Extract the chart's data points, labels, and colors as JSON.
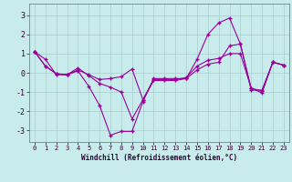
{
  "xlabel": "Windchill (Refroidissement éolien,°C)",
  "bg_color": "#c8ecec",
  "line_color": "#990099",
  "grid_color": "#aacccc",
  "xlim": [
    -0.5,
    23.5
  ],
  "ylim": [
    -3.6,
    3.6
  ],
  "yticks": [
    -3,
    -2,
    -1,
    0,
    1,
    2,
    3
  ],
  "xticks": [
    0,
    1,
    2,
    3,
    4,
    5,
    6,
    7,
    8,
    9,
    10,
    11,
    12,
    13,
    14,
    15,
    16,
    17,
    18,
    19,
    20,
    21,
    22,
    23
  ],
  "series": [
    [
      1.1,
      0.7,
      -0.1,
      -0.1,
      0.1,
      -0.7,
      -1.7,
      -3.25,
      -3.05,
      -3.05,
      -1.5,
      -0.3,
      -0.3,
      -0.3,
      -0.3,
      0.7,
      2.0,
      2.6,
      2.85,
      1.5,
      -0.9,
      -0.9,
      0.55,
      0.4
    ],
    [
      1.1,
      0.35,
      -0.05,
      -0.1,
      0.25,
      -0.15,
      -0.55,
      -0.75,
      -1.0,
      -2.4,
      -1.4,
      -0.35,
      -0.35,
      -0.35,
      -0.25,
      0.35,
      0.65,
      0.75,
      1.0,
      1.0,
      -0.8,
      -0.95,
      0.55,
      0.4
    ],
    [
      1.1,
      0.35,
      -0.05,
      -0.1,
      0.15,
      -0.1,
      -0.35,
      -0.3,
      -0.2,
      0.2,
      -1.4,
      -0.4,
      -0.4,
      -0.4,
      -0.3,
      0.15,
      0.45,
      0.55,
      1.4,
      1.5,
      -0.8,
      -1.05,
      0.55,
      0.4
    ]
  ]
}
